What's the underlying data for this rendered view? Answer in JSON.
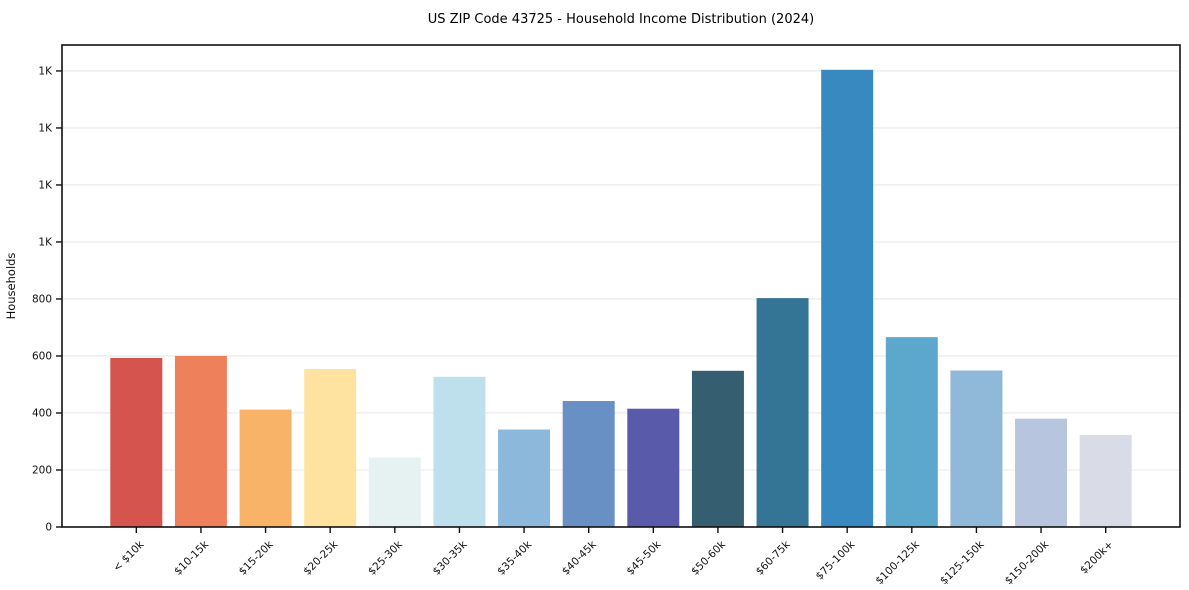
{
  "chart_data": {
    "type": "bar",
    "title": "US ZIP Code 43725 - Household Income Distribution (2024)",
    "xlabel": "",
    "ylabel": "Households",
    "categories": [
      "< $10k",
      "$10-15k",
      "$15-20k",
      "$20-25k",
      "$25-30k",
      "$30-35k",
      "$35-40k",
      "$40-45k",
      "$45-50k",
      "$50-60k",
      "$60-75k",
      "$75-100k",
      "$100-125k",
      "$125-150k",
      "$150-200k",
      "$200k+"
    ],
    "values": [
      593,
      600,
      412,
      554,
      244,
      527,
      342,
      442,
      415,
      548,
      803,
      1604,
      666,
      549,
      380,
      323
    ],
    "bar_colors": [
      "#d5544e",
      "#ef805c",
      "#f8b369",
      "#fde2a0",
      "#e6f2f2",
      "#bedfec",
      "#8cb8db",
      "#6890c4",
      "#5a5aaa",
      "#355e70",
      "#347495",
      "#3789c0",
      "#5ca7cc",
      "#90b8d8",
      "#b7c5de",
      "#d9dbe7"
    ],
    "y_ticks": [
      {
        "v": 0,
        "label": "0"
      },
      {
        "v": 200,
        "label": "200"
      },
      {
        "v": 400,
        "label": "400"
      },
      {
        "v": 600,
        "label": "600"
      },
      {
        "v": 800,
        "label": "800"
      },
      {
        "v": 1000,
        "label": "1K"
      },
      {
        "v": 1200,
        "label": "1K"
      },
      {
        "v": 1400,
        "label": "1K"
      },
      {
        "v": 1600,
        "label": "1K"
      }
    ],
    "ylim": [
      0,
      1691
    ],
    "grid": true,
    "legend": "none",
    "colors": {
      "grid": "#e8e8e8",
      "spine": "#111111",
      "background": "#ffffff",
      "tick": "#111111"
    }
  }
}
